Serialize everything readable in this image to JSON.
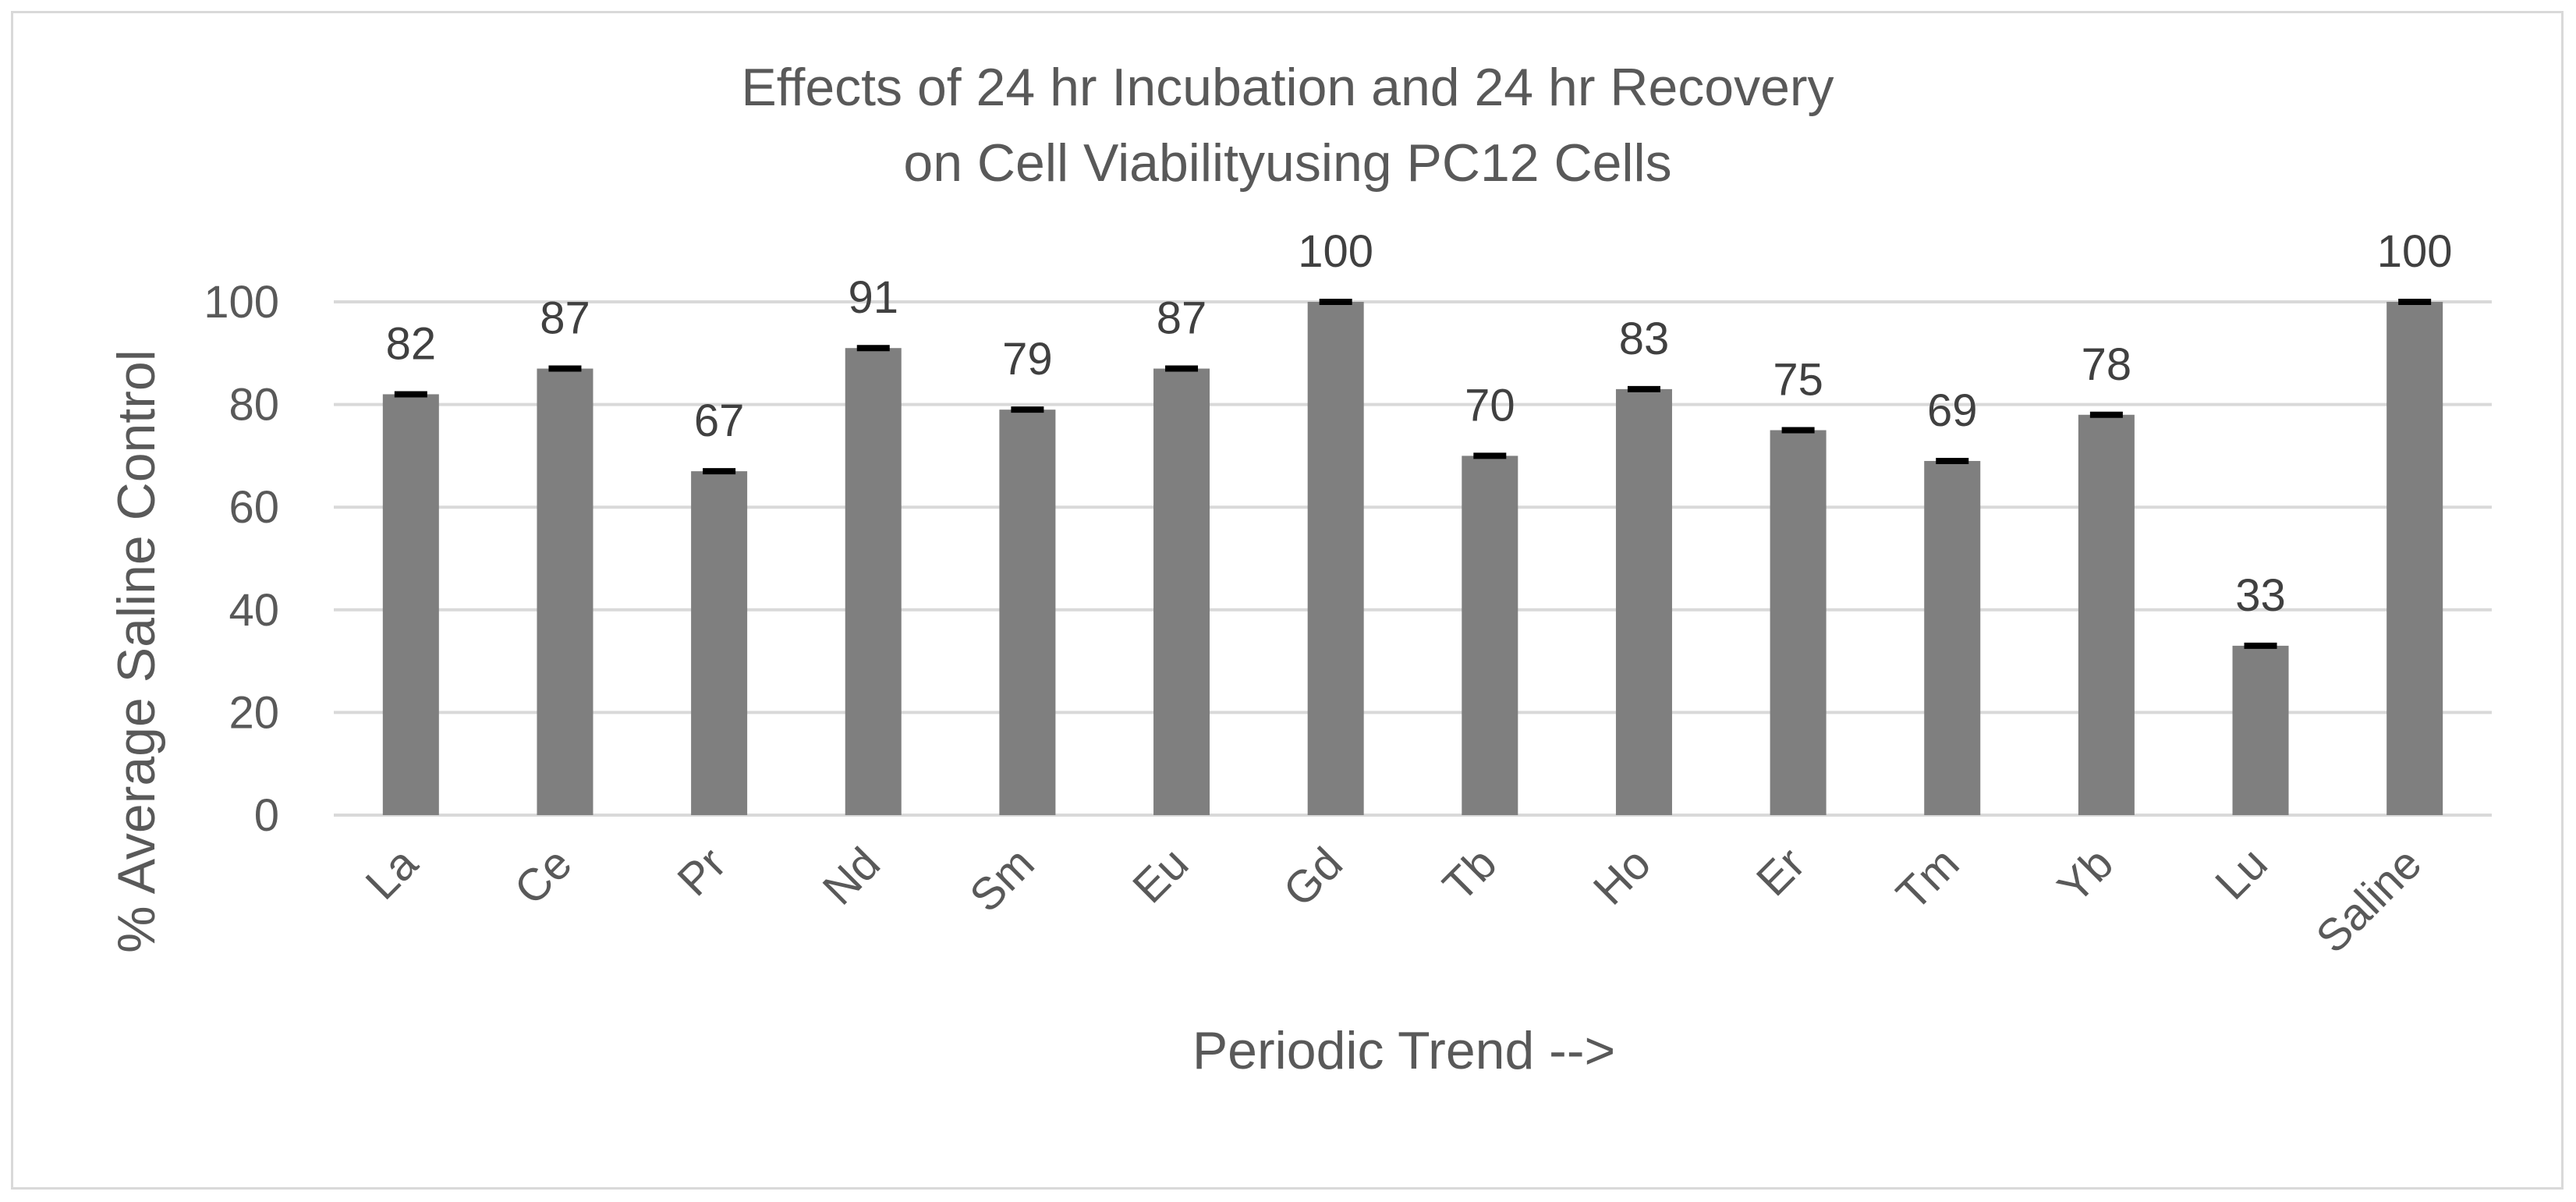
{
  "chart_data": {
    "type": "bar",
    "title_lines": [
      "Effects of 24 hr Incubation and 24 hr Recovery",
      "on Cell Viabilityusing PC12 Cells"
    ],
    "xlabel": "Periodic Trend -->",
    "ylabel": "% Average Saline Control",
    "categories": [
      "La",
      "Ce",
      "Pr",
      "Nd",
      "Sm",
      "Eu",
      "Gd",
      "Tb",
      "Ho",
      "Er",
      "Tm",
      "Yb",
      "Lu",
      "Saline"
    ],
    "values": [
      82,
      87,
      67,
      91,
      79,
      87,
      100,
      70,
      83,
      75,
      69,
      78,
      33,
      100
    ],
    "data_labels": [
      "82",
      "87",
      "67",
      "91",
      "79",
      "87",
      "100",
      "70",
      "83",
      "75",
      "69",
      "78",
      "33",
      "100"
    ],
    "ylim": [
      0,
      100
    ],
    "yticks": [
      0,
      20,
      40,
      60,
      80,
      100
    ],
    "grid": true,
    "error_bars": true,
    "legend": "none",
    "bar_color": "#7f7f7f",
    "error_bar_color": "#000000",
    "grid_color": "#d9d9d9"
  }
}
